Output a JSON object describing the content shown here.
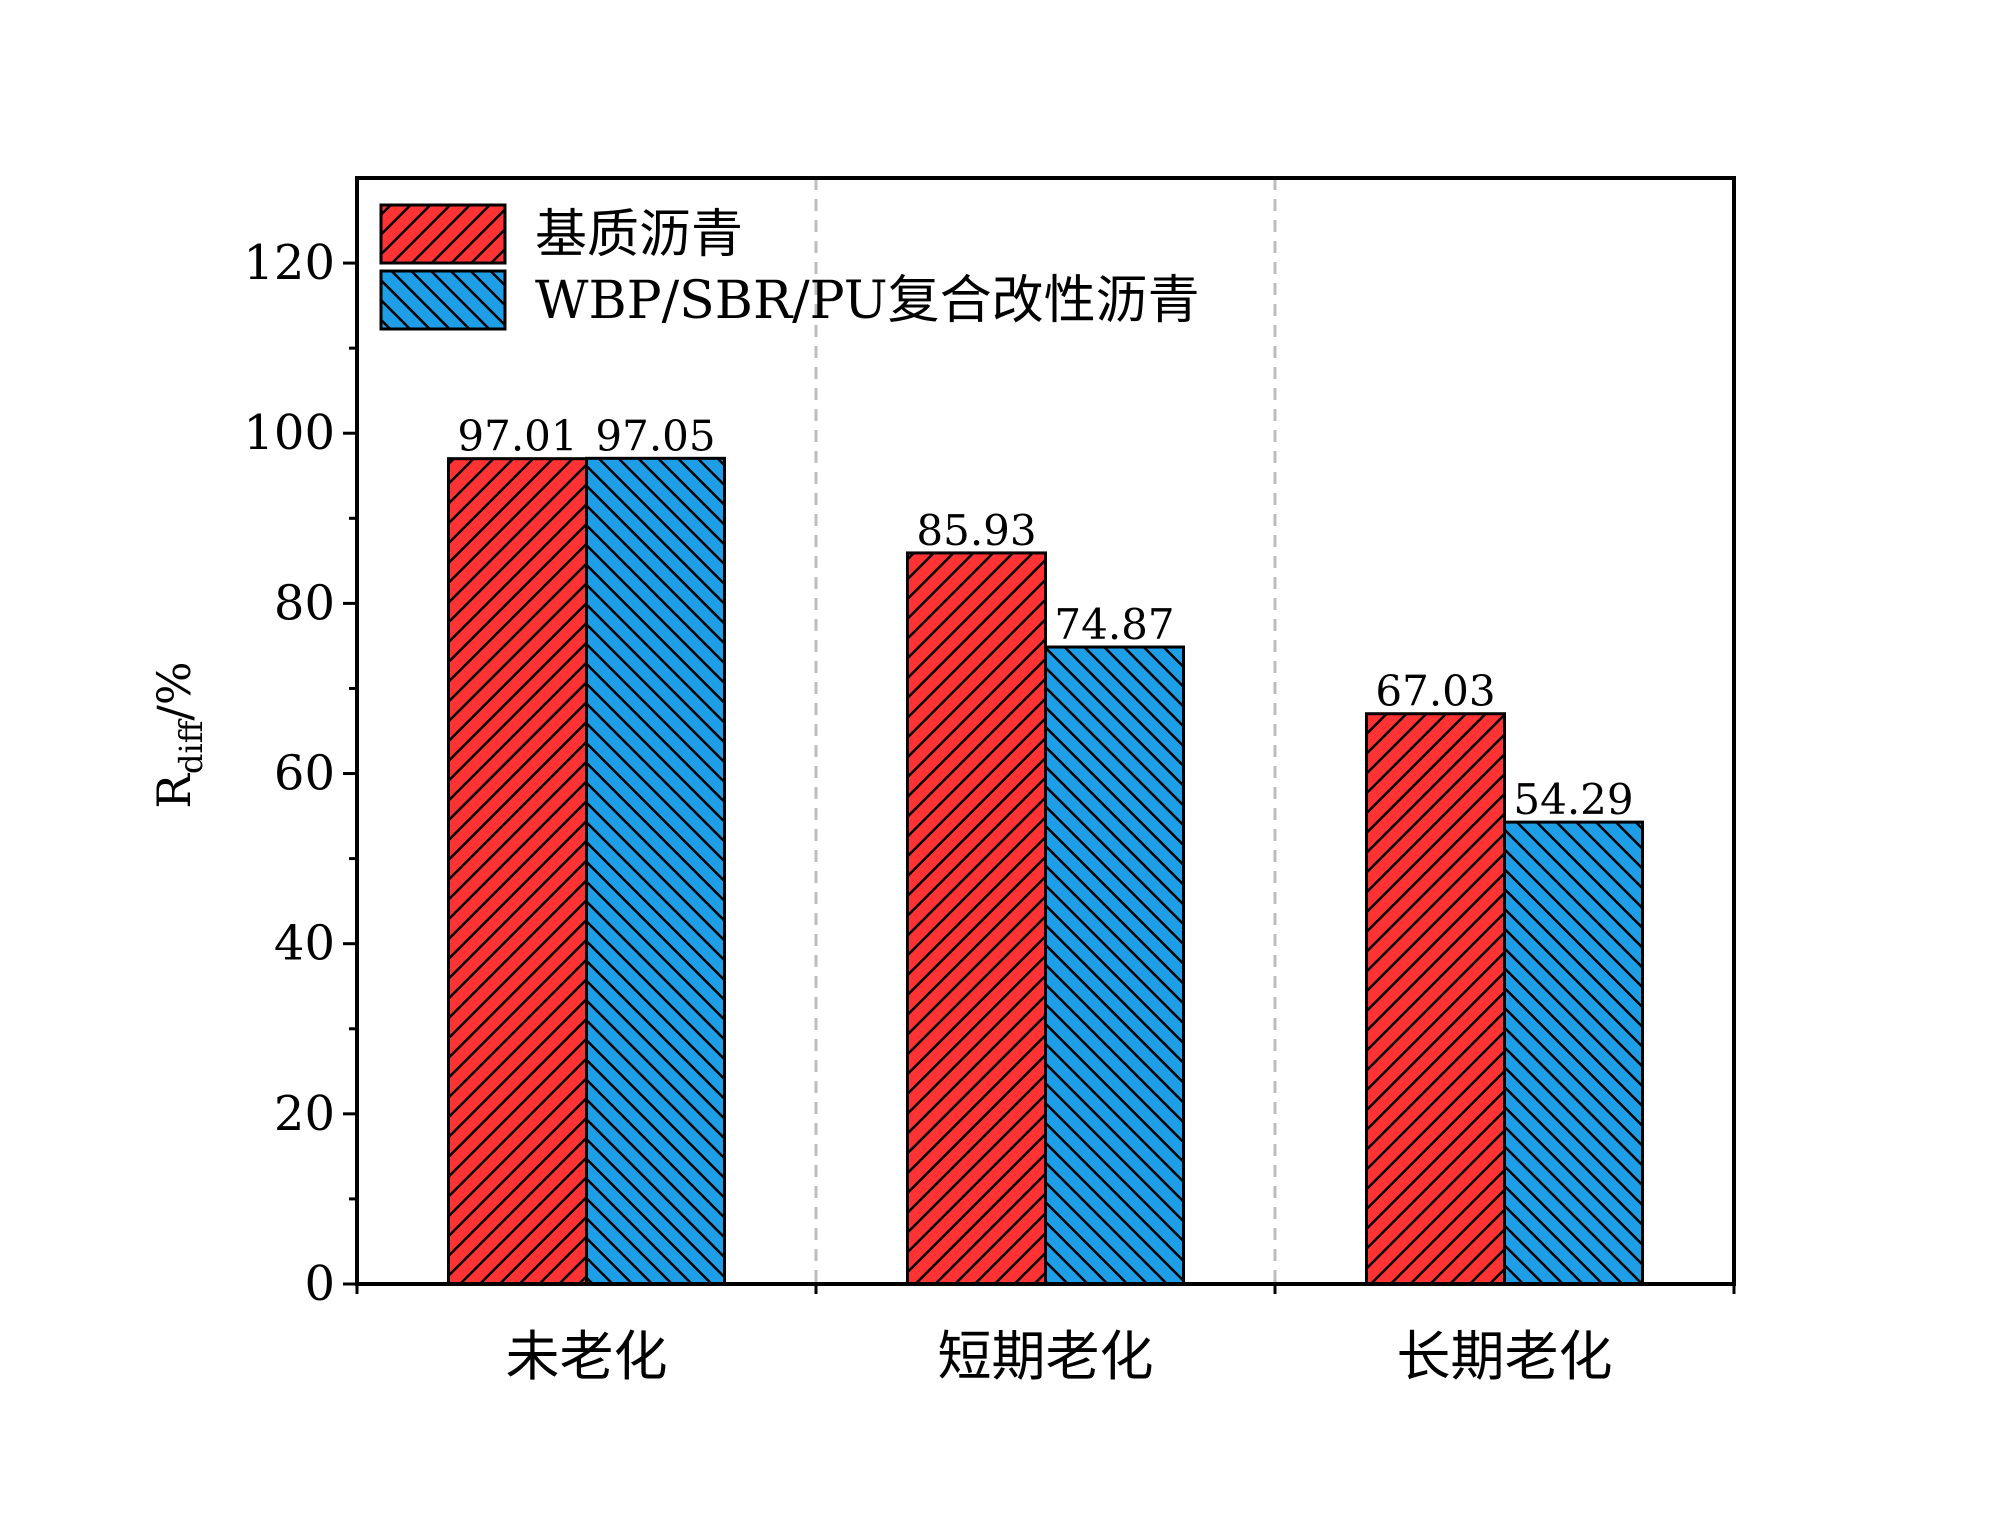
{
  "chart_data": {
    "type": "bar",
    "title": "",
    "xlabel": "",
    "ylabel": {
      "main": "R",
      "sub": "diff",
      "unit": "/%"
    },
    "categories": [
      "未老化",
      "短期老化",
      "长期老化"
    ],
    "series": [
      {
        "name": "基质沥青",
        "values": [
          97.01,
          85.93,
          67.03
        ],
        "color": "#ff3333",
        "hatch": "forward-diagonal"
      },
      {
        "name": "WBP/SBR/PU复合改性沥青",
        "values": [
          97.05,
          74.87,
          54.29
        ],
        "color": "#1f9ee8",
        "hatch": "back-diagonal"
      }
    ],
    "value_labels": [
      [
        "97.01",
        "97.05"
      ],
      [
        "85.93",
        "74.87"
      ],
      [
        "67.03",
        "54.29"
      ]
    ],
    "ylim": [
      0,
      130
    ],
    "yticks": [
      0,
      20,
      40,
      60,
      80,
      100,
      120
    ],
    "ytick_labels": [
      "0",
      "20",
      "40",
      "60",
      "80",
      "100",
      "120"
    ],
    "grid": false,
    "category_separators": true,
    "legend_position": "top-left"
  }
}
